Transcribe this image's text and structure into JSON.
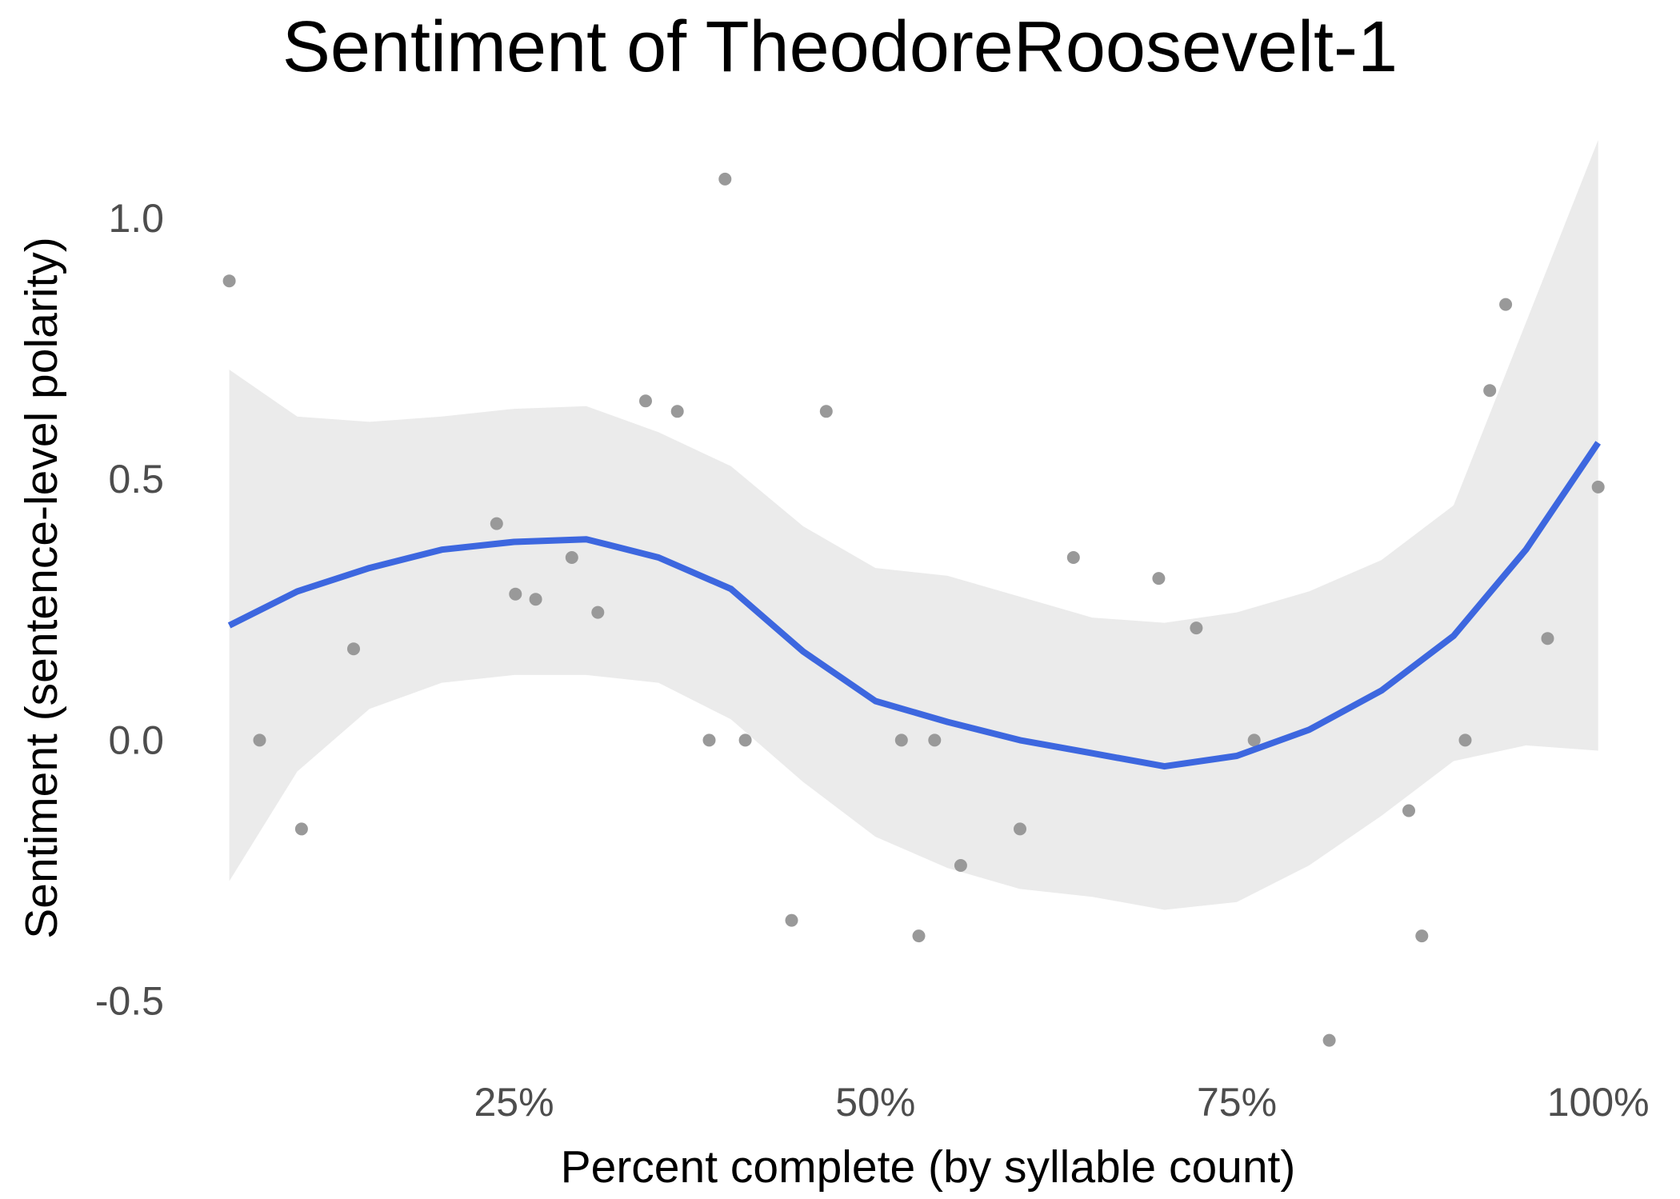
{
  "chart_data": {
    "type": "scatter",
    "title": "Sentiment of TheodoreRoosevelt-1",
    "xlabel": "Percent complete (by syllable count)",
    "ylabel": "Sentiment (sentence-level polarity)",
    "xlim": [
      0.03,
      1.04
    ],
    "ylim": [
      -0.62,
      1.15
    ],
    "x_ticks": [
      {
        "value": 0.25,
        "label": "25%"
      },
      {
        "value": 0.5,
        "label": "50%"
      },
      {
        "value": 0.75,
        "label": "75%"
      },
      {
        "value": 1.0,
        "label": "100%"
      }
    ],
    "y_ticks": [
      {
        "value": 1.0,
        "label": "1.0"
      },
      {
        "value": 0.5,
        "label": "0.5"
      },
      {
        "value": 0.0,
        "label": "0.0"
      },
      {
        "value": -0.5,
        "label": "-0.5"
      }
    ],
    "grid": false,
    "legend": "none",
    "colors": {
      "points": "#999999",
      "smooth": "#3d67df",
      "band": "#ebebeb"
    },
    "points": [
      {
        "x": 0.053,
        "y": 0.88
      },
      {
        "x": 0.074,
        "y": 0.0
      },
      {
        "x": 0.103,
        "y": -0.17
      },
      {
        "x": 0.139,
        "y": 0.175
      },
      {
        "x": 0.238,
        "y": 0.415
      },
      {
        "x": 0.251,
        "y": 0.28
      },
      {
        "x": 0.265,
        "y": 0.27
      },
      {
        "x": 0.29,
        "y": 0.35
      },
      {
        "x": 0.308,
        "y": 0.245
      },
      {
        "x": 0.341,
        "y": 0.65
      },
      {
        "x": 0.363,
        "y": 0.63
      },
      {
        "x": 0.385,
        "y": 0.0
      },
      {
        "x": 0.396,
        "y": 1.075
      },
      {
        "x": 0.41,
        "y": 0.0
      },
      {
        "x": 0.442,
        "y": -0.345
      },
      {
        "x": 0.466,
        "y": 0.63
      },
      {
        "x": 0.518,
        "y": 0.0
      },
      {
        "x": 0.53,
        "y": -0.375
      },
      {
        "x": 0.541,
        "y": 0.0
      },
      {
        "x": 0.559,
        "y": -0.24
      },
      {
        "x": 0.6,
        "y": -0.17
      },
      {
        "x": 0.637,
        "y": 0.35
      },
      {
        "x": 0.696,
        "y": 0.31
      },
      {
        "x": 0.722,
        "y": 0.215
      },
      {
        "x": 0.762,
        "y": 0.0
      },
      {
        "x": 0.814,
        "y": -0.575
      },
      {
        "x": 0.869,
        "y": -0.135
      },
      {
        "x": 0.878,
        "y": -0.375
      },
      {
        "x": 0.908,
        "y": 0.0
      },
      {
        "x": 0.925,
        "y": 0.67
      },
      {
        "x": 0.936,
        "y": 0.835
      },
      {
        "x": 0.965,
        "y": 0.195
      },
      {
        "x": 1.0,
        "y": 0.485
      }
    ],
    "smooth": [
      {
        "x": 0.053,
        "y": 0.22,
        "lo": -0.27,
        "hi": 0.71
      },
      {
        "x": 0.1,
        "y": 0.285,
        "lo": -0.06,
        "hi": 0.62
      },
      {
        "x": 0.15,
        "y": 0.33,
        "lo": 0.06,
        "hi": 0.61
      },
      {
        "x": 0.2,
        "y": 0.365,
        "lo": 0.11,
        "hi": 0.62
      },
      {
        "x": 0.25,
        "y": 0.38,
        "lo": 0.125,
        "hi": 0.635
      },
      {
        "x": 0.3,
        "y": 0.385,
        "lo": 0.125,
        "hi": 0.64
      },
      {
        "x": 0.35,
        "y": 0.35,
        "lo": 0.11,
        "hi": 0.59
      },
      {
        "x": 0.4,
        "y": 0.29,
        "lo": 0.04,
        "hi": 0.525
      },
      {
        "x": 0.45,
        "y": 0.17,
        "lo": -0.08,
        "hi": 0.41
      },
      {
        "x": 0.5,
        "y": 0.075,
        "lo": -0.185,
        "hi": 0.33
      },
      {
        "x": 0.55,
        "y": 0.035,
        "lo": -0.245,
        "hi": 0.315
      },
      {
        "x": 0.6,
        "y": 0.0,
        "lo": -0.285,
        "hi": 0.275
      },
      {
        "x": 0.65,
        "y": -0.025,
        "lo": -0.3,
        "hi": 0.235
      },
      {
        "x": 0.7,
        "y": -0.05,
        "lo": -0.325,
        "hi": 0.225
      },
      {
        "x": 0.75,
        "y": -0.03,
        "lo": -0.31,
        "hi": 0.245
      },
      {
        "x": 0.8,
        "y": 0.02,
        "lo": -0.24,
        "hi": 0.285
      },
      {
        "x": 0.85,
        "y": 0.095,
        "lo": -0.145,
        "hi": 0.345
      },
      {
        "x": 0.9,
        "y": 0.2,
        "lo": -0.04,
        "hi": 0.45
      },
      {
        "x": 0.95,
        "y": 0.365,
        "lo": -0.01,
        "hi": 0.8
      },
      {
        "x": 1.0,
        "y": 0.57,
        "lo": -0.02,
        "hi": 1.15
      }
    ]
  }
}
